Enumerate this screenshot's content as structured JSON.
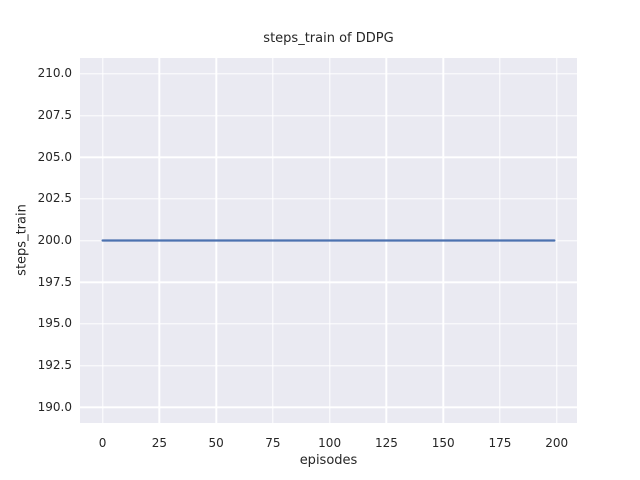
{
  "chart_data": {
    "type": "line",
    "title": "steps_train of DDPG",
    "xlabel": "episodes",
    "ylabel": "steps_train",
    "xlim": [
      -9.95,
      208.95
    ],
    "ylim": [
      189.05,
      210.95
    ],
    "xticks": [
      0,
      25,
      50,
      75,
      100,
      125,
      150,
      175,
      200
    ],
    "xticklabels": [
      "0",
      "25",
      "50",
      "75",
      "100",
      "125",
      "150",
      "175",
      "200"
    ],
    "yticks": [
      190.0,
      192.5,
      195.0,
      197.5,
      200.0,
      202.5,
      205.0,
      207.5,
      210.0
    ],
    "yticklabels": [
      "190.0",
      "192.5",
      "195.0",
      "197.5",
      "200.0",
      "202.5",
      "205.0",
      "207.5",
      "210.0"
    ],
    "grid": true,
    "legend": false,
    "series": [
      {
        "name": "steps_train",
        "color": "#4C72B0",
        "x": [
          0,
          199
        ],
        "y": [
          200,
          200
        ]
      }
    ],
    "colors": {
      "figure_background": "#FFFFFF",
      "axes_background": "#EAEAF2",
      "grid": "#FFFFFF",
      "text": "#262626"
    }
  }
}
